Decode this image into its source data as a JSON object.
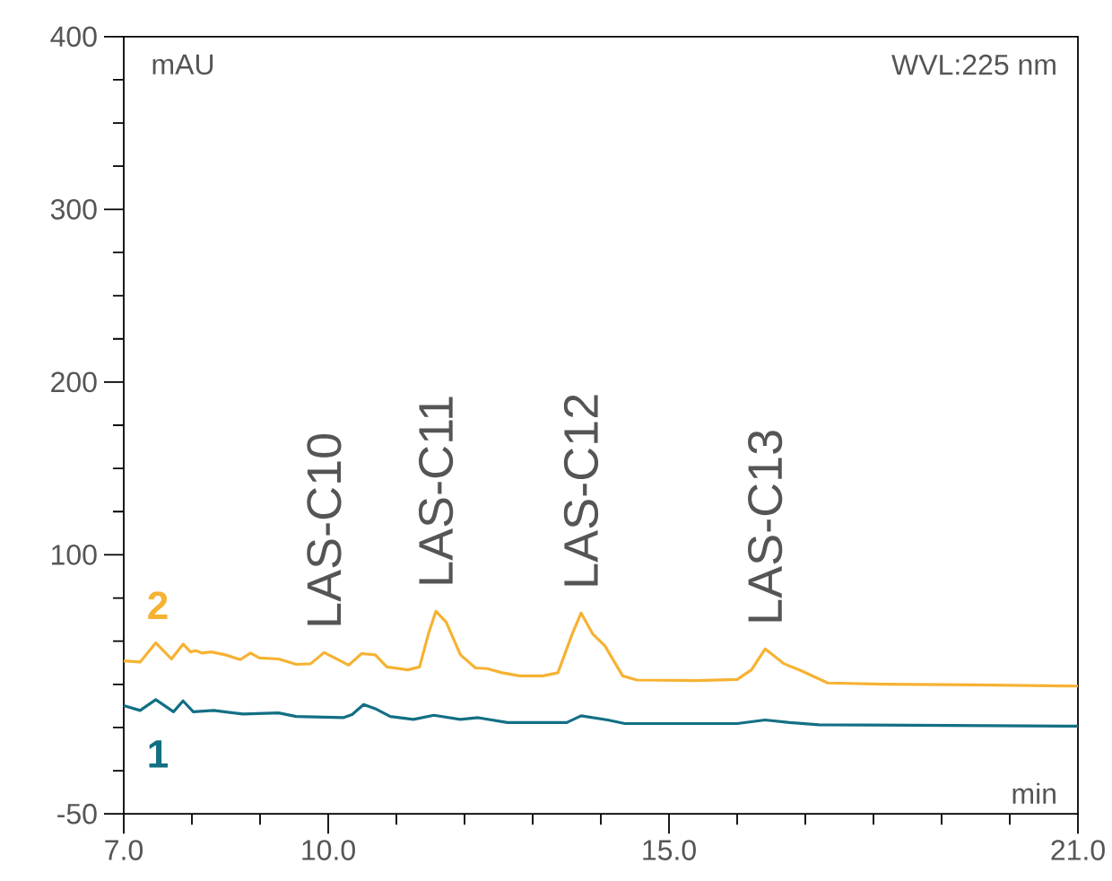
{
  "chart_data": {
    "type": "line",
    "xlabel": "min",
    "ylabel": "mAU",
    "xlim": [
      7.0,
      21.0
    ],
    "ylim": [
      -50,
      400
    ],
    "xticks": [
      {
        "value": 7,
        "label": "7.0"
      },
      {
        "value": 8,
        "label": null
      },
      {
        "value": 9,
        "label": null
      },
      {
        "value": 10,
        "label": "10.0"
      },
      {
        "value": 11,
        "label": null
      },
      {
        "value": 12,
        "label": null
      },
      {
        "value": 13,
        "label": null
      },
      {
        "value": 14,
        "label": null
      },
      {
        "value": 15,
        "label": "15.0"
      },
      {
        "value": 16,
        "label": null
      },
      {
        "value": 17,
        "label": null
      },
      {
        "value": 18,
        "label": null
      },
      {
        "value": 19,
        "label": null
      },
      {
        "value": 20,
        "label": null
      },
      {
        "value": 21,
        "label": "21.0"
      }
    ],
    "yticks": [
      -50,
      {
        "value": -25,
        "label": null
      },
      {
        "value": 0,
        "label": null
      },
      {
        "value": 25,
        "label": null
      },
      {
        "value": 50,
        "label": null
      },
      {
        "value": 75,
        "label": null
      },
      100,
      {
        "value": 125,
        "label": null
      },
      {
        "value": 150,
        "label": null
      },
      {
        "value": 175,
        "label": null
      },
      200,
      {
        "value": 225,
        "label": null
      },
      {
        "value": 250,
        "label": null
      },
      {
        "value": 275,
        "label": null
      },
      300,
      {
        "value": 325,
        "label": null
      },
      {
        "value": 350,
        "label": null
      },
      {
        "value": 375,
        "label": null
      },
      400
    ],
    "series": [
      {
        "name": "2",
        "color": "#f6b233",
        "x": [
          7.0,
          7.24,
          7.47,
          7.7,
          7.87,
          7.98,
          8.06,
          8.15,
          8.28,
          8.49,
          8.71,
          8.86,
          8.99,
          9.27,
          9.53,
          9.74,
          9.94,
          10.18,
          10.3,
          10.49,
          10.69,
          10.86,
          11.17,
          11.34,
          11.47,
          11.58,
          11.73,
          11.94,
          12.16,
          12.33,
          12.55,
          12.81,
          13.15,
          13.37,
          13.58,
          13.71,
          13.88,
          14.06,
          14.32,
          14.53,
          15.39,
          16.0,
          16.21,
          16.41,
          16.69,
          16.95,
          17.33,
          18.15,
          19.45,
          20.83,
          21.0
        ],
        "values": [
          38.6,
          37.9,
          49.0,
          39.7,
          48.3,
          43.8,
          44.5,
          43.1,
          43.8,
          42.1,
          39.3,
          43.1,
          40.3,
          39.7,
          36.6,
          36.9,
          43.4,
          38.6,
          36.1,
          42.8,
          42.1,
          35.1,
          33.4,
          35.1,
          54.2,
          67.3,
          61.1,
          42.1,
          34.5,
          34.1,
          31.7,
          29.9,
          29.9,
          31.7,
          54.2,
          66.3,
          54.2,
          47.3,
          29.9,
          27.5,
          27.2,
          27.8,
          33.4,
          45.5,
          36.9,
          32.7,
          25.8,
          25.1,
          24.7,
          24.1,
          24.0
        ]
      },
      {
        "name": "1",
        "color": "#136f84",
        "x": [
          7.0,
          7.24,
          7.47,
          7.73,
          7.87,
          8.02,
          8.32,
          8.75,
          9.27,
          9.53,
          10.22,
          10.35,
          10.52,
          10.69,
          10.91,
          11.25,
          11.55,
          11.94,
          12.2,
          12.63,
          13.32,
          13.5,
          13.71,
          14.1,
          14.35,
          16.0,
          16.41,
          16.77,
          17.2,
          20.83,
          21.0
        ],
        "values": [
          12.7,
          9.9,
          16.1,
          9.1,
          15.4,
          9.1,
          9.9,
          7.8,
          8.5,
          6.4,
          5.7,
          7.5,
          13.3,
          10.9,
          6.4,
          4.7,
          7.1,
          4.7,
          5.7,
          2.9,
          2.9,
          2.9,
          6.8,
          4.4,
          2.3,
          2.3,
          4.4,
          2.9,
          1.6,
          0.8,
          0.8
        ]
      }
    ],
    "annotations": [
      "WVL:225 nm",
      {
        "text": "LAS-C10",
        "x": 9.94,
        "y": 43.4
      },
      {
        "text": "LAS-C11",
        "x": 11.58,
        "y": 67.3
      },
      {
        "text": "LAS-C12",
        "x": 13.71,
        "y": 66.3
      },
      {
        "text": "LAS-C13",
        "x": 16.41,
        "y": 45.5
      }
    ]
  }
}
